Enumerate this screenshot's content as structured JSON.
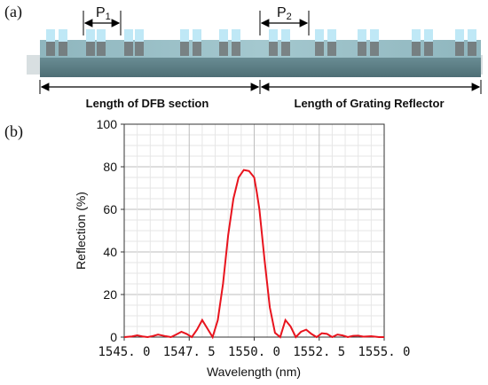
{
  "panel_a": {
    "label": "(a)",
    "period_1": {
      "text": "P",
      "sub": "1"
    },
    "period_2": {
      "text": "P",
      "sub": "2"
    },
    "dfb_section_label": "Length of DFB section",
    "grating_reflector_label": "Length of Grating Reflector",
    "colors": {
      "substrate": "#5c7f86",
      "ridge": "#86aeb6",
      "tooth": "#bfe8f6",
      "groove": "#6c6c6c"
    }
  },
  "panel_b": {
    "label": "(b)",
    "chart_data": {
      "type": "line",
      "title": "",
      "xlabel": "Wavelength (nm)",
      "ylabel": "Reflection (%)",
      "xlim": [
        1545.0,
        1555.0
      ],
      "ylim": [
        0,
        100
      ],
      "xticks": [
        1545.0,
        1547.5,
        1550.0,
        1552.5,
        1555.0
      ],
      "xtick_labels": [
        "1545. 0",
        "1547. 5",
        "1550. 0",
        "1552. 5",
        "1555. 0"
      ],
      "yticks": [
        0,
        20,
        40,
        60,
        80,
        100
      ],
      "ytick_labels": [
        "0",
        "20",
        "40",
        "60",
        "80",
        "100"
      ],
      "grid": true,
      "legend": "none",
      "series": [
        {
          "color": "#e8141e",
          "x": [
            1545.0,
            1545.3,
            1545.5,
            1545.7,
            1545.9,
            1546.1,
            1546.3,
            1546.6,
            1546.8,
            1547.0,
            1547.2,
            1547.4,
            1547.6,
            1547.8,
            1548.0,
            1548.2,
            1548.4,
            1548.6,
            1548.8,
            1549.0,
            1549.2,
            1549.4,
            1549.6,
            1549.8,
            1550.0,
            1550.1,
            1550.2,
            1550.4,
            1550.6,
            1550.8,
            1551.0,
            1551.2,
            1551.4,
            1551.6,
            1551.8,
            1552.0,
            1552.2,
            1552.4,
            1552.6,
            1552.8,
            1553.0,
            1553.2,
            1553.4,
            1553.6,
            1553.8,
            1554.0,
            1554.2,
            1554.5,
            1554.8,
            1555.0
          ],
          "y": [
            0,
            0.3,
            0.8,
            0.3,
            0,
            0.5,
            1.2,
            0.4,
            0,
            1.2,
            2.5,
            1.5,
            0,
            3.5,
            8.0,
            4.0,
            0,
            8,
            25,
            48,
            65,
            75,
            78.5,
            78,
            75,
            68,
            60,
            36,
            14,
            2,
            0,
            8,
            5,
            0,
            2.5,
            3.5,
            1.5,
            0,
            1.8,
            1.5,
            0,
            1.2,
            0.8,
            0,
            0.6,
            0.7,
            0.2,
            0.4,
            0,
            0
          ]
        }
      ]
    }
  }
}
